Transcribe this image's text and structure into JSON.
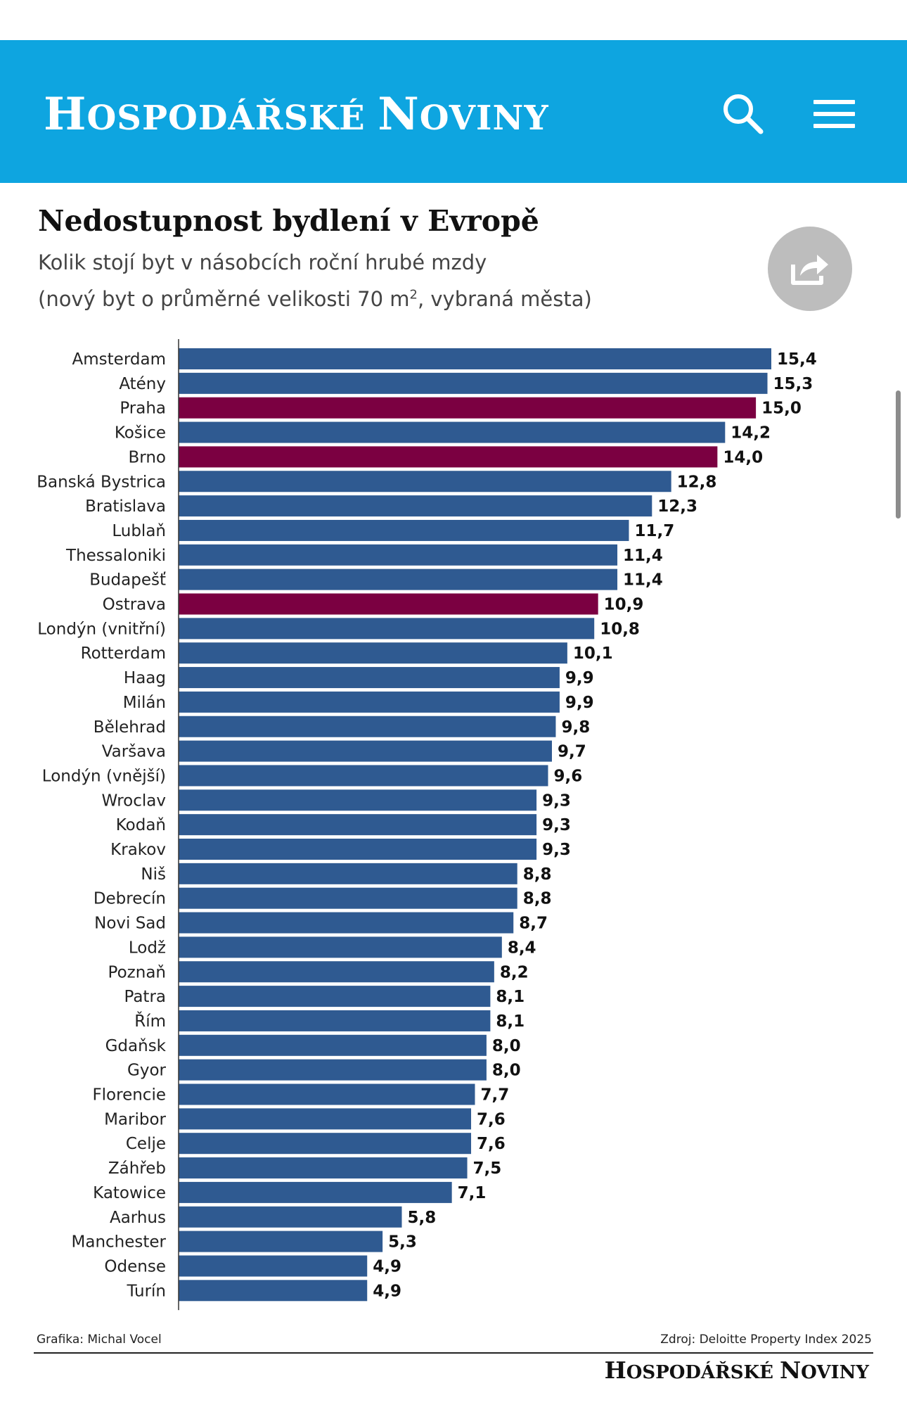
{
  "header": {
    "logo": [
      {
        "text": "H",
        "big": true
      },
      {
        "text": "OSPODÁŘSKÉ ",
        "big": false
      },
      {
        "text": "N",
        "big": true
      },
      {
        "text": "OVINY",
        "big": false
      }
    ],
    "background": "#0ea5e0",
    "icons": [
      "search-icon",
      "menu-icon"
    ]
  },
  "article": {
    "title": "Nedostupnost bydlení v Evropě",
    "subtitle_line1": "Kolik stojí byt v násobcích roční hrubé mzdy",
    "subtitle_line2_before": "(nový byt o průměrné velikosti 70 m",
    "subtitle_line2_sup": "2",
    "subtitle_line2_after": ", vybraná města)",
    "share_icon": "share-icon"
  },
  "chart_data": {
    "type": "bar",
    "orientation": "horizontal",
    "categories": [
      "Amsterdam",
      "Atény",
      "Praha",
      "Košice",
      "Brno",
      "Banská Bystrica",
      "Bratislava",
      "Lublaň",
      "Thessaloniki",
      "Budapešť",
      "Ostrava",
      "Londýn (vnitřní)",
      "Rotterdam",
      "Haag",
      "Milán",
      "Bělehrad",
      "Varšava",
      "Londýn (vnější)",
      "Wroclav",
      "Kodaň",
      "Krakov",
      "Niš",
      "Debrecín",
      "Novi Sad",
      "Lodž",
      "Poznaň",
      "Patra",
      "Řím",
      "Gdaňsk",
      "Gyor",
      "Florencie",
      "Maribor",
      "Celje",
      "Záhřeb",
      "Katowice",
      "Aarhus",
      "Manchester",
      "Odense",
      "Turín"
    ],
    "values": [
      15.4,
      15.3,
      15.0,
      14.2,
      14.0,
      12.8,
      12.3,
      11.7,
      11.4,
      11.4,
      10.9,
      10.8,
      10.1,
      9.9,
      9.9,
      9.8,
      9.7,
      9.6,
      9.3,
      9.3,
      9.3,
      8.8,
      8.8,
      8.7,
      8.4,
      8.2,
      8.1,
      8.1,
      8.0,
      8.0,
      7.7,
      7.6,
      7.6,
      7.5,
      7.1,
      5.8,
      5.3,
      4.9,
      4.9
    ],
    "labels": [
      "15,4",
      "15,3",
      "15,0",
      "14,2",
      "14,0",
      "12,8",
      "12,3",
      "11,7",
      "11,4",
      "11,4",
      "10,9",
      "10,8",
      "10,1",
      "9,9",
      "9,9",
      "9,8",
      "9,7",
      "9,6",
      "9,3",
      "9,3",
      "9,3",
      "8,8",
      "8,8",
      "8,7",
      "8,4",
      "8,2",
      "8,1",
      "8,1",
      "8,0",
      "8,0",
      "7,7",
      "7,6",
      "7,6",
      "7,5",
      "7,1",
      "5,8",
      "5,3",
      "4,9",
      "4,9"
    ],
    "highlighted": [
      "Praha",
      "Brno",
      "Ostrava"
    ],
    "colors": {
      "default": "#2f5a91",
      "highlight": "#7b0041"
    },
    "xlim": [
      0,
      15.4
    ]
  },
  "footer": {
    "credit": "Grafika: Michal Vocel",
    "source": "Zdroj: Deloitte Property Index 2025",
    "logo": [
      {
        "text": "H",
        "big": true
      },
      {
        "text": "OSPODÁŘSKÉ ",
        "big": false
      },
      {
        "text": "N",
        "big": true
      },
      {
        "text": "OVINY",
        "big": false
      }
    ]
  }
}
